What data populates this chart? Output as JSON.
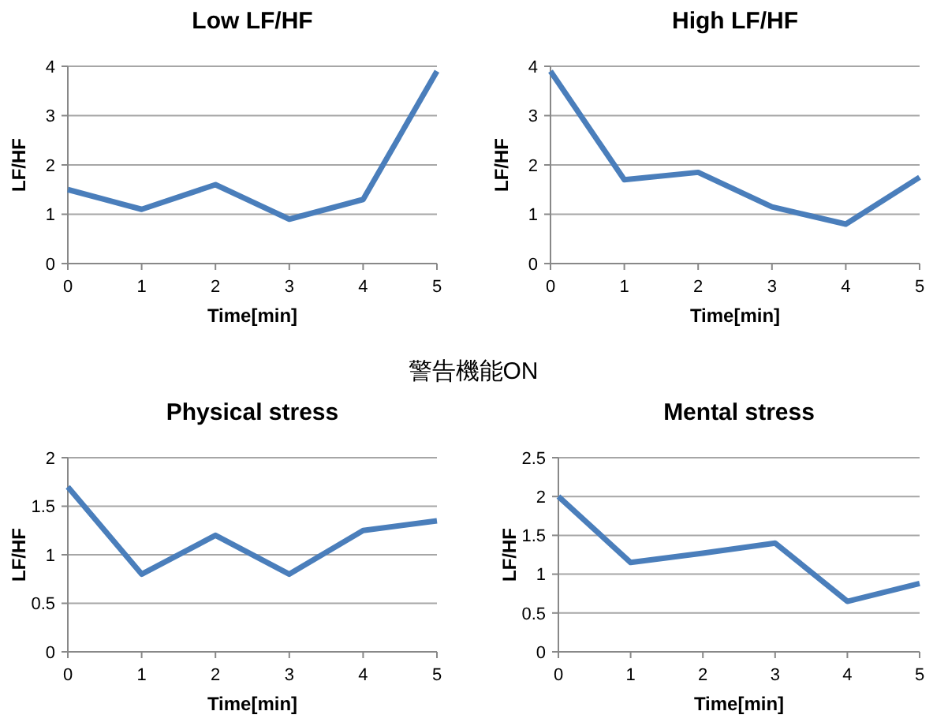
{
  "chart_data": [
    {
      "type": "line",
      "title": "Low LF/HF",
      "xlabel": "Time[min]",
      "ylabel": "LF/HF",
      "x": [
        0,
        1,
        2,
        3,
        4,
        5
      ],
      "xlim": [
        0,
        5
      ],
      "xticks": [
        0,
        1,
        2,
        3,
        4,
        5
      ],
      "ylim": [
        0,
        4
      ],
      "yticks": [
        0,
        1,
        2,
        3,
        4
      ],
      "grid": "y",
      "marker": "none",
      "series": [
        {
          "color": "#4a7ebb",
          "values": [
            1.5,
            1.1,
            1.6,
            0.9,
            1.3,
            3.9
          ]
        }
      ]
    },
    {
      "type": "line",
      "title": "High LF/HF",
      "xlabel": "Time[min]",
      "ylabel": "LF/HF",
      "x": [
        0,
        1,
        2,
        3,
        4,
        5
      ],
      "xlim": [
        0,
        5
      ],
      "xticks": [
        0,
        1,
        2,
        3,
        4,
        5
      ],
      "ylim": [
        0,
        4
      ],
      "yticks": [
        0,
        1,
        2,
        3,
        4
      ],
      "grid": "y",
      "marker": "none",
      "series": [
        {
          "color": "#4a7ebb",
          "values": [
            3.9,
            1.7,
            1.85,
            1.15,
            0.8,
            1.75
          ]
        }
      ]
    },
    {
      "type": "line",
      "title": "Physical stress",
      "xlabel": "Time[min]",
      "ylabel": "LF/HF",
      "annotations": [
        "警告機能ON"
      ],
      "x": [
        0,
        1,
        2,
        3,
        4,
        5
      ],
      "xlim": [
        0,
        5
      ],
      "xticks": [
        0,
        1,
        2,
        3,
        4,
        5
      ],
      "ylim": [
        0,
        2
      ],
      "yticks": [
        0,
        0.5,
        1,
        1.5,
        2
      ],
      "grid": "y",
      "marker": "none",
      "series": [
        {
          "color": "#4a7ebb",
          "values": [
            1.7,
            0.8,
            1.2,
            0.8,
            1.25,
            1.35
          ]
        }
      ]
    },
    {
      "type": "line",
      "title": "Mental stress",
      "xlabel": "Time[min]",
      "ylabel": "LF/HF",
      "x": [
        0,
        1,
        2,
        3,
        4,
        5
      ],
      "xlim": [
        0,
        5
      ],
      "xticks": [
        0,
        1,
        2,
        3,
        4,
        5
      ],
      "ylim": [
        0,
        2.5
      ],
      "yticks": [
        0,
        0.5,
        1,
        1.5,
        2,
        2.5
      ],
      "grid": "y",
      "marker": "none",
      "series": [
        {
          "color": "#4a7ebb",
          "values": [
            2.0,
            1.15,
            1.27,
            1.4,
            0.65,
            0.88
          ]
        }
      ]
    }
  ]
}
